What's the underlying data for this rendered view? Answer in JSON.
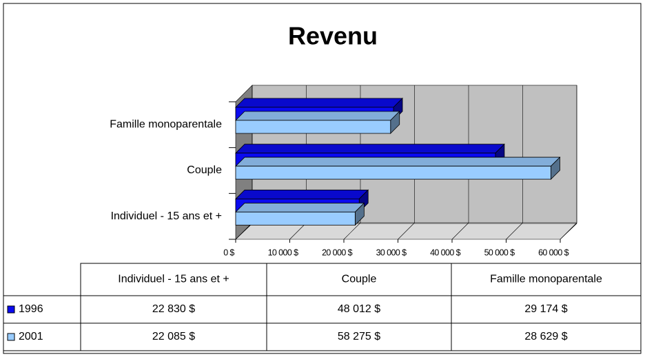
{
  "chart_data": {
    "type": "bar3d_horizontal",
    "title": "Revenu",
    "categories": [
      "Individuel - 15 ans et +",
      "Couple",
      "Famille monoparentale"
    ],
    "series": [
      {
        "name": "1996",
        "color": "#0a0af0",
        "values": [
          22830,
          48012,
          29174
        ],
        "value_labels": [
          "22 830 $",
          "48 012 $",
          "29 174 $"
        ]
      },
      {
        "name": "2001",
        "color": "#99ccff",
        "values": [
          22085,
          58275,
          28629
        ],
        "value_labels": [
          "22 085 $",
          "58 275 $",
          "28 629 $"
        ]
      }
    ],
    "xlim": [
      0,
      60000
    ],
    "xticks": [
      {
        "value": 0,
        "label": "0 $"
      },
      {
        "value": 10000,
        "label": "10 000 $"
      },
      {
        "value": 20000,
        "label": "20 000 $"
      },
      {
        "value": 30000,
        "label": "30 000 $"
      },
      {
        "value": 40000,
        "label": "40 000 $"
      },
      {
        "value": 50000,
        "label": "50 000 $"
      },
      {
        "value": 60000,
        "label": "60 000 $"
      }
    ],
    "grid": true
  }
}
